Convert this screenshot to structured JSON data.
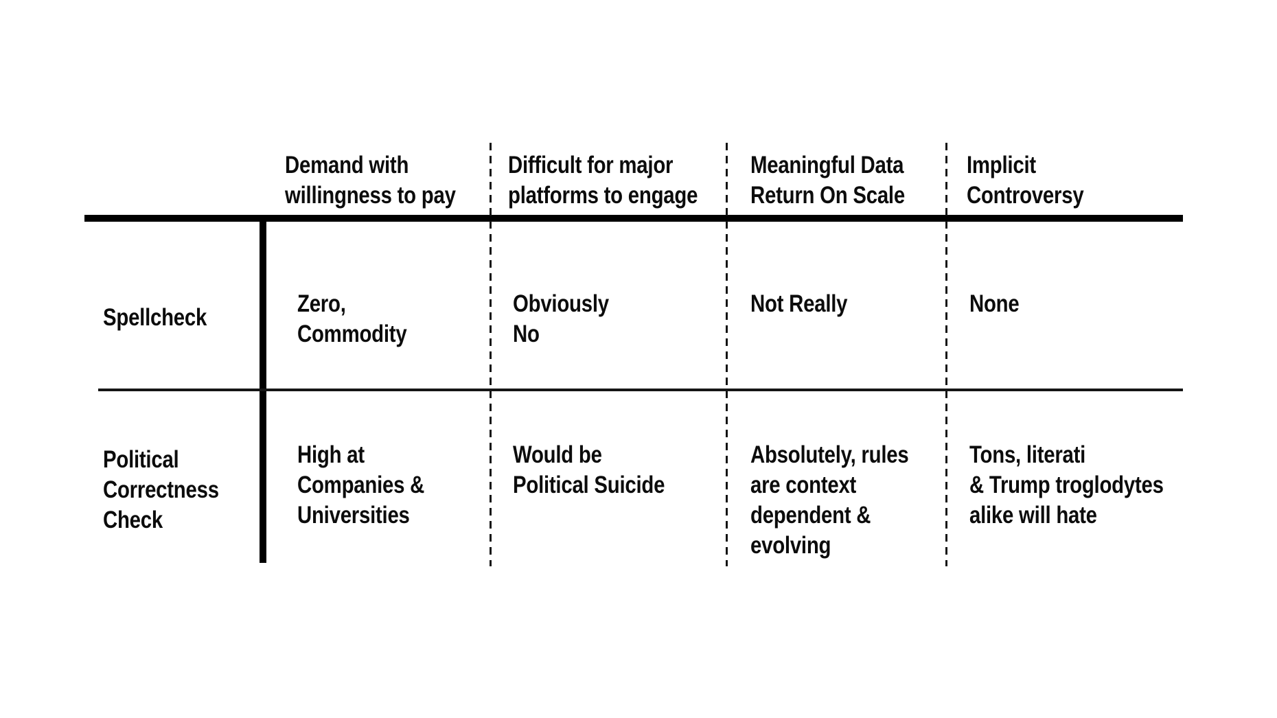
{
  "colors": {
    "background": "#ffffff",
    "text": "#0c0c0c",
    "solid_line": "#000000",
    "dashed_line": "#131313"
  },
  "table": {
    "headers": [
      {
        "lines": [
          "Demand with",
          "willingness to pay"
        ]
      },
      {
        "lines": [
          "Difficult for major",
          "platforms to engage"
        ]
      },
      {
        "lines": [
          "Meaningful Data",
          "Return On Scale"
        ]
      },
      {
        "lines": [
          "Implicit",
          "Controversy"
        ]
      }
    ],
    "row1": {
      "label_lines": [
        "Spellcheck"
      ],
      "cells": [
        {
          "lines": [
            "Zero,",
            "Commodity"
          ]
        },
        {
          "lines": [
            "Obviously",
            "No"
          ]
        },
        {
          "lines": [
            "Not Really"
          ]
        },
        {
          "lines": [
            "None"
          ]
        }
      ]
    },
    "row2": {
      "label_lines": [
        "Political",
        "Correctness",
        "Check"
      ],
      "cells": [
        {
          "lines": [
            "High at",
            "Companies &",
            "Universities"
          ]
        },
        {
          "lines": [
            "Would be",
            "Political Suicide"
          ]
        },
        {
          "lines": [
            "Absolutely, rules",
            "are context",
            "dependent &",
            "evolving"
          ]
        },
        {
          "lines": [
            "Tons, literati",
            "& Trump troglodytes",
            "alike will hate"
          ]
        }
      ]
    }
  },
  "chart_data": {
    "type": "table",
    "columns": [
      "Demand with willingness to pay",
      "Difficult for major platforms to engage",
      "Meaningful Data Return On Scale",
      "Implicit Controversy"
    ],
    "rows": [
      {
        "label": "Spellcheck",
        "values": [
          "Zero, Commodity",
          "Obviously No",
          "Not Really",
          "None"
        ]
      },
      {
        "label": "Political Correctness Check",
        "values": [
          "High at Companies & Universities",
          "Would be Political Suicide",
          "Absolutely, rules are context dependent & evolving",
          "Tons, literati & Trump troglodytes alike will hate"
        ]
      }
    ]
  }
}
